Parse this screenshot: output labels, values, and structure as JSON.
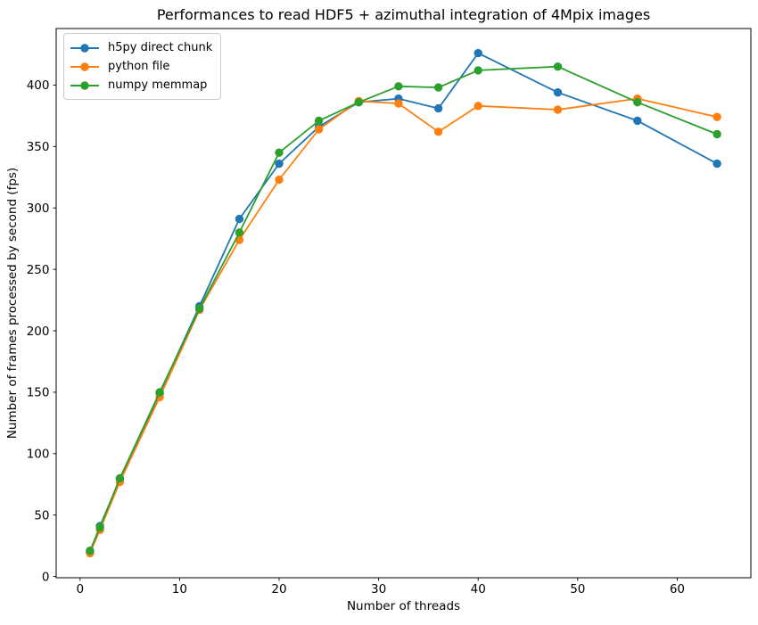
{
  "chart_data": {
    "type": "line",
    "title": "Performances to read HDF5 + azimuthal integration of 4Mpix images",
    "xlabel": "Number of threads",
    "ylabel": "Number of frames processed by second (fps)",
    "x": [
      1,
      2,
      4,
      8,
      12,
      16,
      20,
      24,
      28,
      32,
      36,
      40,
      48,
      56,
      64
    ],
    "series": [
      {
        "name": "h5py direct chunk",
        "color": "#1f77b4",
        "values": [
          20,
          41,
          79,
          149,
          220,
          291,
          336,
          366,
          386,
          389,
          381,
          426,
          394,
          371,
          336
        ]
      },
      {
        "name": "python file",
        "color": "#ff7f0e",
        "values": [
          19,
          38,
          77,
          146,
          217,
          274,
          323,
          364,
          387,
          385,
          362,
          383,
          380,
          389,
          374
        ]
      },
      {
        "name": "numpy memmap",
        "color": "#2ca02c",
        "values": [
          21,
          40,
          80,
          150,
          218,
          280,
          345,
          371,
          386,
          399,
          398,
          412,
          415,
          386,
          360
        ]
      }
    ],
    "x_ticks": [
      0,
      10,
      20,
      30,
      40,
      50,
      60
    ],
    "y_ticks": [
      0,
      50,
      100,
      150,
      200,
      250,
      300,
      350,
      400
    ],
    "xlim": [
      -2.4,
      67.4
    ],
    "ylim": [
      -1,
      446
    ],
    "legend_position": "upper left",
    "grid": false,
    "marker": "circle",
    "background_color": "#ffffff",
    "axis_color": "#000000"
  }
}
